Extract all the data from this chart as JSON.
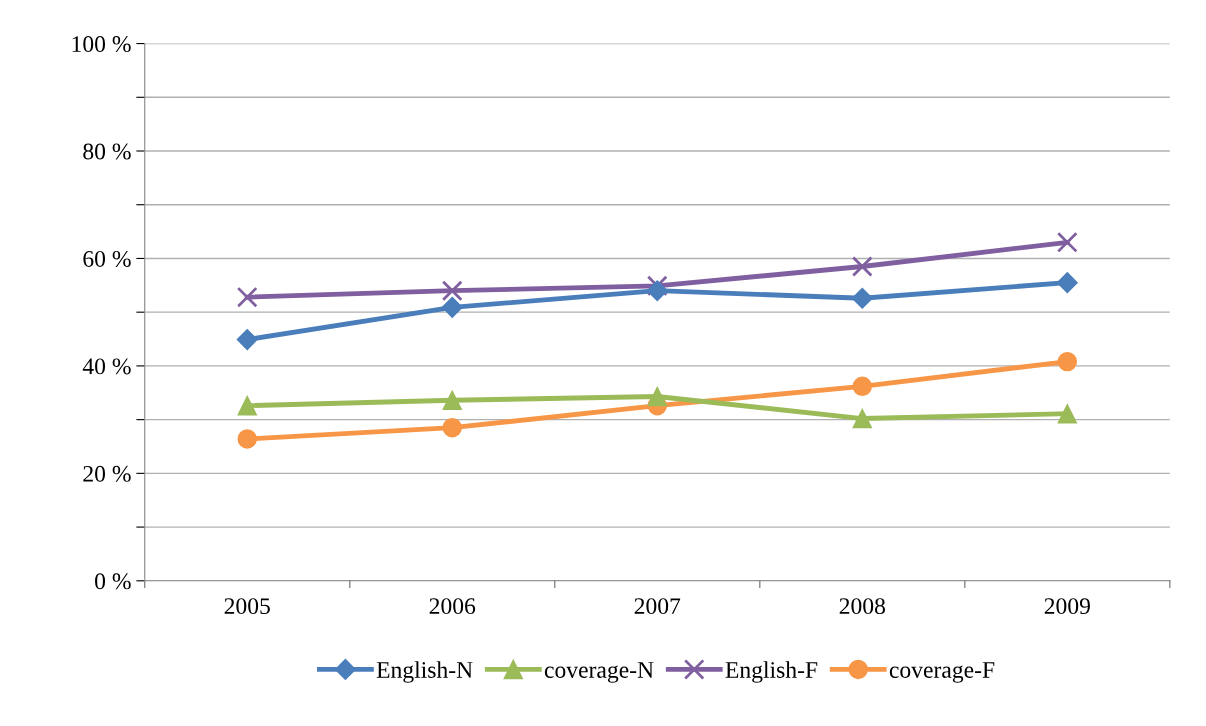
{
  "chart_data": {
    "type": "line",
    "categories": [
      "2005",
      "2006",
      "2007",
      "2008",
      "2009"
    ],
    "series": [
      {
        "name": "English-N",
        "color": "#4a7ebb",
        "marker": "diamond",
        "values": [
          44.9,
          50.9,
          54,
          52.6,
          55.5
        ]
      },
      {
        "name": "coverage-N",
        "color": "#9bbb59",
        "marker": "triangle",
        "values": [
          32.6,
          33.6,
          34.3,
          30.2,
          31.1
        ]
      },
      {
        "name": "English-F",
        "color": "#7f5f9f",
        "marker": "cross",
        "values": [
          52.8,
          54,
          54.9,
          58.5,
          63
        ]
      },
      {
        "name": "coverage-F",
        "color": "#f79646",
        "marker": "circle",
        "values": [
          26.4,
          28.5,
          32.6,
          36.2,
          40.8
        ]
      }
    ],
    "ylim": [
      0,
      100
    ],
    "yticks": [
      {
        "value": 0,
        "label": "0 %"
      },
      {
        "value": 10,
        "label": null
      },
      {
        "value": 20,
        "label": "20 %"
      },
      {
        "value": 30,
        "label": null
      },
      {
        "value": 40,
        "label": "40 %"
      },
      {
        "value": 50,
        "label": null
      },
      {
        "value": 60,
        "label": "60 %"
      },
      {
        "value": 70,
        "label": null
      },
      {
        "value": 80,
        "label": "80 %"
      },
      {
        "value": 90,
        "label": null
      },
      {
        "value": 100,
        "label": "100 %"
      }
    ],
    "grid": "y",
    "legend": "bottom"
  }
}
